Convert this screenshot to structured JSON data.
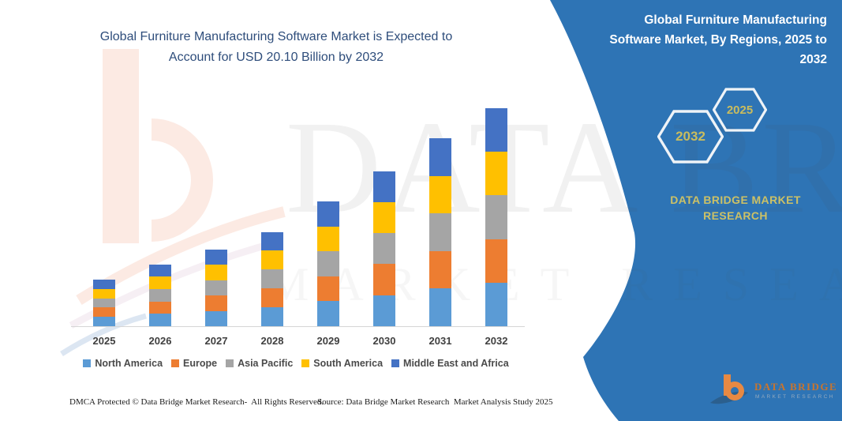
{
  "title": {
    "line1": "Global Furniture Manufacturing Software Market is Expected to",
    "line2": "Account for USD 20.10 Billion by 2032"
  },
  "chart_data": {
    "type": "bar",
    "stacked": true,
    "title": "Global Furniture Manufacturing Software Market is Expected to Account for USD 20.10 Billion by 2032",
    "unit": "USD Billion",
    "categories": [
      "2025",
      "2026",
      "2027",
      "2028",
      "2029",
      "2030",
      "2031",
      "2032"
    ],
    "series": [
      {
        "name": "North America",
        "color": "#5B9BD5",
        "values": [
          0.86,
          1.14,
          1.42,
          1.74,
          2.3,
          2.86,
          3.46,
          4.02
        ]
      },
      {
        "name": "Europe",
        "color": "#ED7D31",
        "values": [
          0.86,
          1.14,
          1.42,
          1.74,
          2.3,
          2.86,
          3.46,
          4.02
        ]
      },
      {
        "name": "Asia Pacific",
        "color": "#A5A5A5",
        "values": [
          0.86,
          1.14,
          1.42,
          1.74,
          2.3,
          2.86,
          3.46,
          4.02
        ]
      },
      {
        "name": "South America",
        "color": "#FFC000",
        "values": [
          0.86,
          1.14,
          1.42,
          1.74,
          2.3,
          2.86,
          3.46,
          4.02
        ]
      },
      {
        "name": "Middle East and Africa",
        "color": "#4472C4",
        "values": [
          0.86,
          1.14,
          1.42,
          1.74,
          2.3,
          2.86,
          3.46,
          4.02
        ]
      }
    ],
    "totals_usd_billion": [
      4.3,
      5.7,
      7.1,
      8.7,
      11.5,
      14.3,
      17.3,
      20.1
    ],
    "values_are_estimates": true,
    "xlabel": "",
    "ylabel": "",
    "gridlines": false,
    "legend_position": "bottom"
  },
  "side_panel": {
    "heading": "Global Furniture Manufacturing Software Market, By Regions, 2025 to 2032",
    "hexagons": [
      {
        "label": "2032"
      },
      {
        "label": "2025"
      }
    ],
    "brand": "DATA BRIDGE MARKET RESEARCH"
  },
  "corner_logo": {
    "wordmark": "DATA BRIDGE",
    "tagline": "MARKET RESEARCH"
  },
  "footer": {
    "dmca": "DMCA Protected © Data Bridge Market Research-  All Rights Reserved.",
    "source": "Source: Data Bridge Market Research  Market Analysis Study 2025"
  },
  "watermarks": {
    "big_text": "DATA BRIDGE",
    "sub_text": "MARKET RESEARCH"
  },
  "colors": {
    "panel_blue": "#2E74B5",
    "title_blue": "#2E4D7B",
    "accent_khaki": "#CCC166",
    "hexagon_year": "#C9BC5E",
    "hexagon_stroke": "#EFF3F7",
    "axis_gray": "#D6D6D6",
    "watermark_peach": "#FCEAE3",
    "watermark_blue": "#DCE6F2"
  }
}
